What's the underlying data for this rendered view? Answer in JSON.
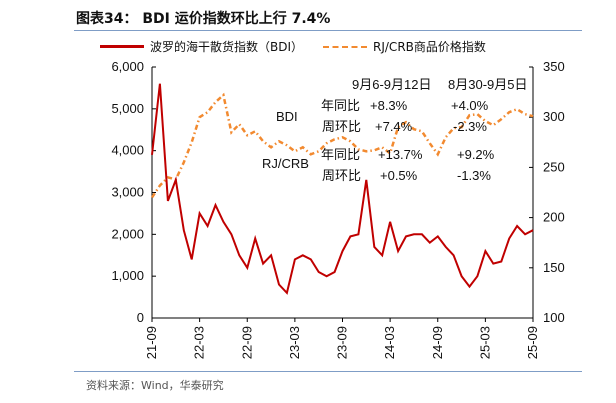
{
  "title": "图表34： BDI 运价指数环比上行 7.4%",
  "source": "资料来源：Wind，华泰研究",
  "chart_data": {
    "type": "line",
    "title": "图表34： BDI 运价指数环比上行 7.4%",
    "x": [
      "21-09",
      "21-10",
      "21-11",
      "21-12",
      "22-01",
      "22-02",
      "22-03",
      "22-04",
      "22-05",
      "22-06",
      "22-07",
      "22-08",
      "22-09",
      "22-10",
      "22-11",
      "22-12",
      "23-01",
      "23-02",
      "23-03",
      "23-04",
      "23-05",
      "23-06",
      "23-07",
      "23-08",
      "23-09",
      "23-10",
      "23-11",
      "23-12",
      "24-01",
      "24-02",
      "24-03",
      "24-04",
      "24-05",
      "24-06",
      "24-07",
      "24-08",
      "24-09",
      "24-10",
      "24-11",
      "24-12",
      "25-01",
      "25-02",
      "25-03",
      "25-04",
      "25-05",
      "25-06",
      "25-07",
      "25-08",
      "25-09"
    ],
    "xticks": [
      "21-09",
      "22-03",
      "22-09",
      "23-03",
      "23-09",
      "24-03",
      "24-09",
      "25-03",
      "25-09"
    ],
    "series": [
      {
        "name": "波罗的海干散货指数（BDI）",
        "axis": "left",
        "color": "#c00000",
        "values": [
          3900,
          5600,
          2800,
          3300,
          2100,
          1400,
          2500,
          2200,
          2700,
          2300,
          2000,
          1500,
          1200,
          1900,
          1300,
          1500,
          800,
          600,
          1400,
          1500,
          1400,
          1100,
          1000,
          1100,
          1600,
          1950,
          2000,
          3300,
          1700,
          1500,
          2300,
          1600,
          1950,
          2000,
          2000,
          1800,
          1950,
          1700,
          1500,
          1000,
          750,
          1000,
          1600,
          1300,
          1350,
          1900,
          2200,
          2000,
          2100
        ]
      },
      {
        "name": "RJ/CRB商品价格指数",
        "axis": "right",
        "color": "#f28a30",
        "values": [
          220,
          232,
          240,
          238,
          255,
          275,
          300,
          305,
          315,
          322,
          285,
          293,
          282,
          286,
          276,
          270,
          276,
          272,
          266,
          270,
          263,
          266,
          274,
          278,
          280,
          276,
          268,
          266,
          267,
          270,
          264,
          290,
          295,
          288,
          286,
          274,
          263,
          280,
          289,
          290,
          302,
          303,
          296,
          292,
          298,
          305,
          308,
          303,
          301
        ]
      }
    ],
    "yleft": {
      "min": 0,
      "max": 6000,
      "ticks": [
        "0",
        "1,000",
        "2,000",
        "3,000",
        "4,000",
        "5,000",
        "6,000"
      ]
    },
    "yright": {
      "min": 100,
      "max": 350,
      "ticks": [
        "100",
        "150",
        "200",
        "250",
        "300",
        "350"
      ]
    },
    "legend_position": "top",
    "annotations": {
      "col1": "9月6-9月12日",
      "col2": "8月30-9月5日",
      "bdi_label": "BDI",
      "crb_label": "RJ/CRB",
      "yoy": "年同比",
      "wow": "周环比",
      "bdi_yoy_1": "+8.3%",
      "bdi_wow_1": "+7.4%",
      "bdi_yoy_2": "+4.0%",
      "bdi_wow_2": "-2.3%",
      "crb_yoy_1": "+13.7%",
      "crb_wow_1": "+0.5%",
      "crb_yoy_2": "+9.2%",
      "crb_wow_2": "-1.3%"
    }
  }
}
